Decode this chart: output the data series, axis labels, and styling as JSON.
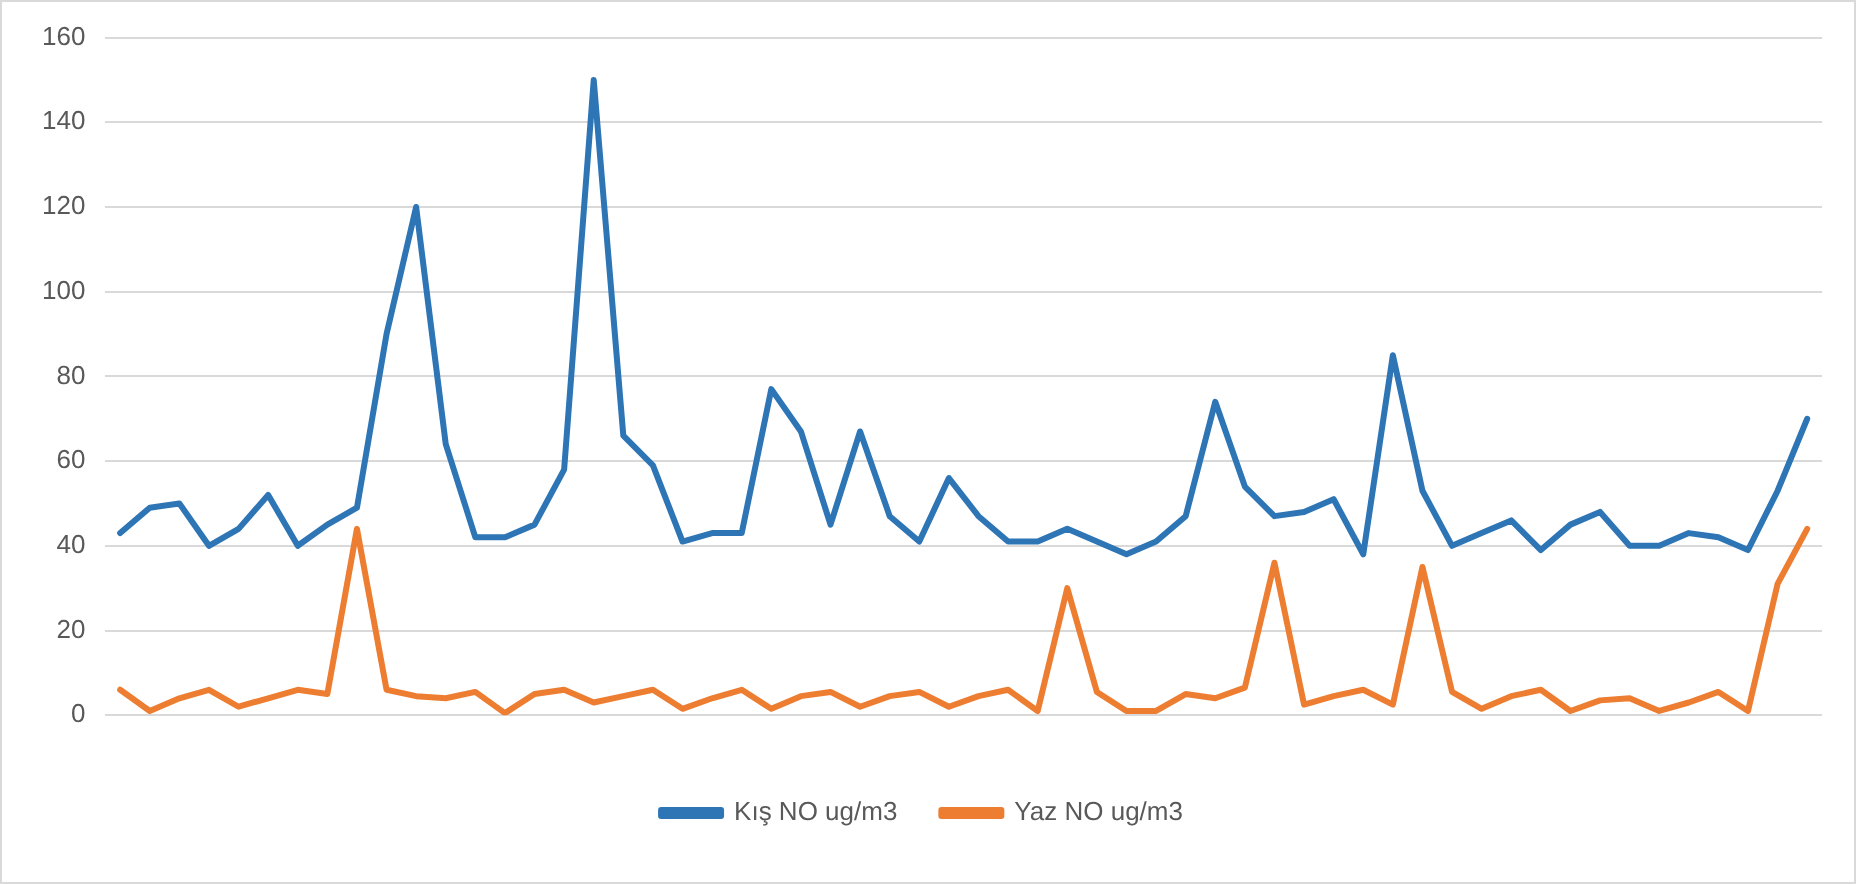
{
  "chart_data": {
    "type": "line",
    "categories": [
      null,
      null,
      null,
      null,
      null,
      null,
      null,
      null,
      null,
      null,
      null,
      null,
      null,
      null,
      null,
      null,
      null,
      null,
      null,
      null,
      null,
      null,
      null,
      null,
      null,
      null,
      null,
      null,
      null,
      null,
      null,
      null,
      null,
      null,
      null,
      null,
      null,
      null,
      null,
      null,
      null,
      null,
      null,
      null,
      null,
      null,
      null,
      null,
      null,
      null,
      null,
      null,
      null,
      null,
      null,
      null,
      null,
      null
    ],
    "series": [
      {
        "name": "Kış NO ug/m3",
        "color": "#2e75b6",
        "values": [
          43,
          49,
          50,
          40,
          44,
          52,
          40,
          45,
          49,
          90,
          120,
          64,
          42,
          42,
          45,
          58,
          150,
          66,
          59,
          41,
          43,
          43,
          77,
          67,
          45,
          67,
          47,
          41,
          56,
          47,
          41,
          41,
          44,
          41,
          38,
          41,
          47,
          74,
          54,
          47,
          48,
          51,
          38,
          85,
          53,
          40,
          43,
          46,
          39,
          45,
          48,
          40,
          40,
          43,
          42,
          39,
          53,
          70
        ]
      },
      {
        "name": "Yaz NO ug/m3",
        "color": "#ed7d31",
        "values": [
          6,
          1,
          4,
          6,
          2,
          4,
          6,
          5,
          44,
          6,
          4.5,
          4,
          5.5,
          0.5,
          5,
          6,
          3,
          4.5,
          6,
          1.5,
          4,
          6,
          1.5,
          4.5,
          5.5,
          2,
          4.5,
          5.5,
          2,
          4.5,
          6,
          1,
          30,
          5.5,
          1,
          1,
          5,
          4,
          6.5,
          36,
          2.5,
          4.5,
          6,
          2.5,
          35,
          5.5,
          1.5,
          4.5,
          6,
          1,
          3.5,
          4,
          1,
          3,
          5.5,
          1,
          31,
          44
        ]
      }
    ],
    "ylim": [
      0,
      160
    ],
    "yticks": [
      0,
      20,
      40,
      60,
      80,
      100,
      120,
      140,
      160
    ],
    "grid": "y",
    "legend": "bottom",
    "marker": "none",
    "line_style": "solid"
  }
}
